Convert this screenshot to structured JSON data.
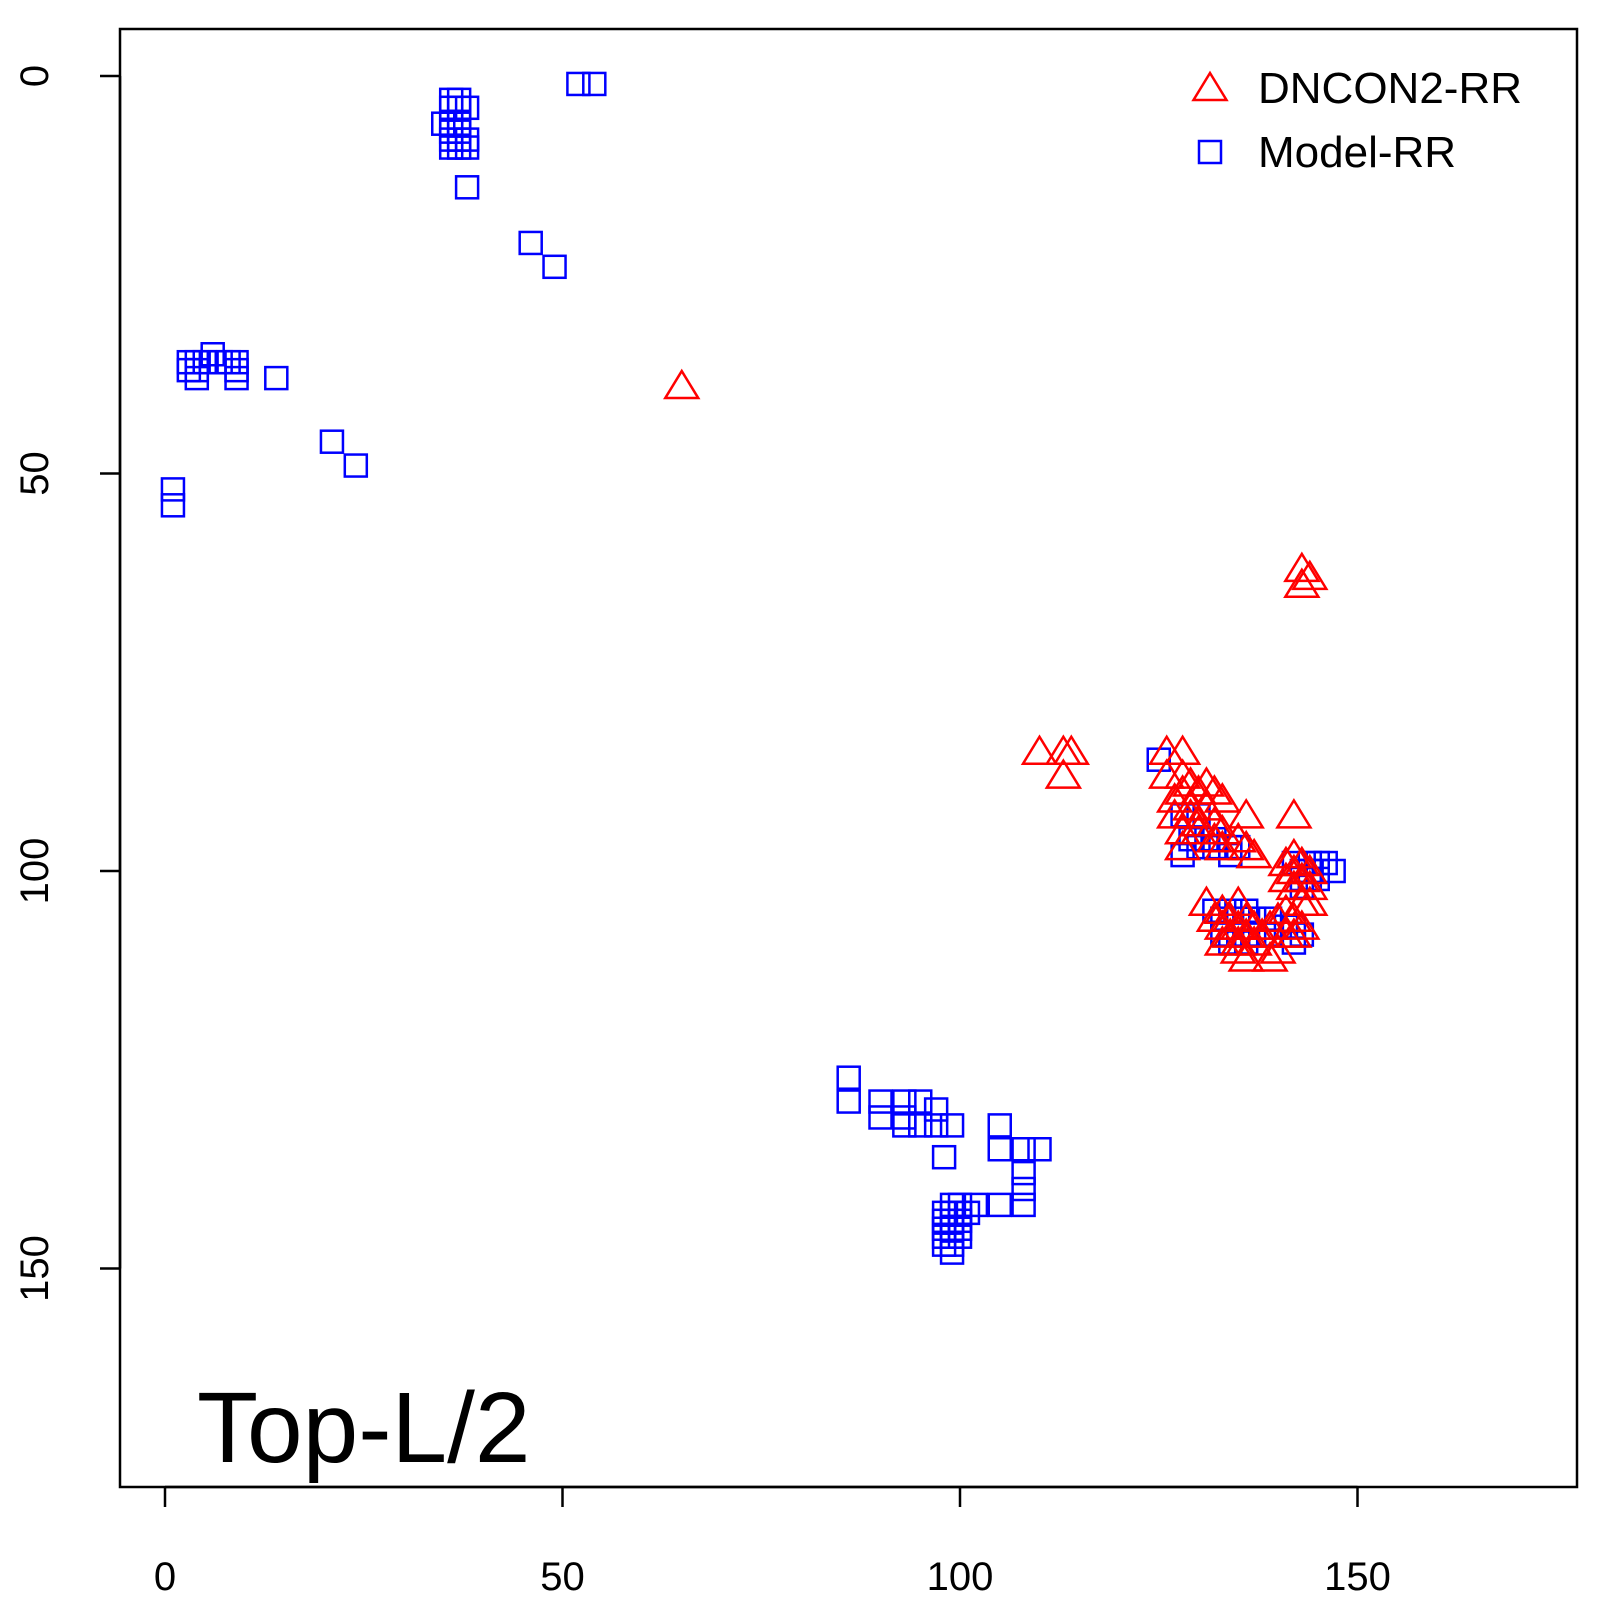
{
  "chart_data": {
    "type": "scatter",
    "title": "",
    "xlabel": "",
    "ylabel": "",
    "xlim": [
      -6,
      178
    ],
    "ylim": [
      -6,
      178
    ],
    "y_reversed": true,
    "grid": false,
    "x_ticks": [
      0,
      50,
      100,
      150
    ],
    "y_ticks": [
      0,
      50,
      100,
      150
    ],
    "annotation": "Top-L/2",
    "legend": {
      "position": "top-right",
      "entries": [
        "DNCON2-RR",
        "Model-RR"
      ]
    },
    "series": [
      {
        "name": "DNCON2-RR",
        "marker": "triangle",
        "color": "#ff0000",
        "points": [
          [
            65,
            39
          ],
          [
            110,
            85
          ],
          [
            113,
            85
          ],
          [
            114,
            85
          ],
          [
            113,
            88
          ],
          [
            143,
            62
          ],
          [
            144,
            63
          ],
          [
            143,
            64
          ],
          [
            126,
            85
          ],
          [
            128,
            85
          ],
          [
            126,
            88
          ],
          [
            128,
            88
          ],
          [
            129,
            89
          ],
          [
            131,
            89
          ],
          [
            128,
            90
          ],
          [
            130,
            90
          ],
          [
            132,
            90
          ],
          [
            127,
            91
          ],
          [
            129,
            92
          ],
          [
            131,
            92
          ],
          [
            133,
            91
          ],
          [
            127,
            93
          ],
          [
            129,
            93
          ],
          [
            130,
            94
          ],
          [
            132,
            94
          ],
          [
            136,
            93
          ],
          [
            128,
            95
          ],
          [
            130,
            95
          ],
          [
            133,
            95
          ],
          [
            128,
            97
          ],
          [
            132,
            96
          ],
          [
            135,
            96
          ],
          [
            133,
            97
          ],
          [
            136,
            97
          ],
          [
            137,
            98
          ],
          [
            142,
            93
          ],
          [
            142,
            98
          ],
          [
            141,
            99
          ],
          [
            143,
            99
          ],
          [
            142,
            100
          ],
          [
            144,
            100
          ],
          [
            141,
            101
          ],
          [
            143,
            101
          ],
          [
            142,
            102
          ],
          [
            144,
            102
          ],
          [
            143,
            104
          ],
          [
            144,
            104
          ],
          [
            141,
            105
          ],
          [
            142,
            106
          ],
          [
            143,
            107
          ],
          [
            131,
            104
          ],
          [
            133,
            105
          ],
          [
            135,
            104
          ],
          [
            132,
            106
          ],
          [
            134,
            106
          ],
          [
            136,
            106
          ],
          [
            133,
            107
          ],
          [
            135,
            107
          ],
          [
            137,
            107
          ],
          [
            134,
            108
          ],
          [
            136,
            108
          ],
          [
            138,
            108
          ],
          [
            133,
            109
          ],
          [
            135,
            109
          ],
          [
            137,
            109
          ],
          [
            135,
            110
          ],
          [
            139,
            107
          ],
          [
            140,
            106
          ],
          [
            142,
            108
          ],
          [
            136,
            111
          ],
          [
            139,
            111
          ],
          [
            140,
            110
          ],
          [
            141,
            108
          ]
        ]
      },
      {
        "name": "Model-RR",
        "marker": "square",
        "color": "#0000ff",
        "points": [
          [
            52,
            1
          ],
          [
            54,
            1
          ],
          [
            36,
            3
          ],
          [
            37,
            3
          ],
          [
            36,
            4
          ],
          [
            37,
            4
          ],
          [
            38,
            4
          ],
          [
            35,
            6
          ],
          [
            36,
            6
          ],
          [
            37,
            6
          ],
          [
            36,
            7
          ],
          [
            37,
            7
          ],
          [
            36,
            8
          ],
          [
            37,
            8
          ],
          [
            38,
            8
          ],
          [
            36,
            9
          ],
          [
            37,
            9
          ],
          [
            38,
            9
          ],
          [
            38,
            14
          ],
          [
            46,
            21
          ],
          [
            49,
            24
          ],
          [
            6,
            35
          ],
          [
            3,
            36
          ],
          [
            4,
            36
          ],
          [
            5,
            36
          ],
          [
            7,
            36
          ],
          [
            8,
            36
          ],
          [
            9,
            36
          ],
          [
            3,
            37
          ],
          [
            4,
            37
          ],
          [
            9,
            37
          ],
          [
            4,
            38
          ],
          [
            9,
            38
          ],
          [
            14,
            38
          ],
          [
            21,
            46
          ],
          [
            24,
            49
          ],
          [
            1,
            52
          ],
          [
            1,
            54
          ],
          [
            125,
            86
          ],
          [
            128,
            93
          ],
          [
            130,
            93
          ],
          [
            129,
            96
          ],
          [
            131,
            96
          ],
          [
            132,
            96
          ],
          [
            130,
            97
          ],
          [
            132,
            97
          ],
          [
            134,
            97
          ],
          [
            135,
            97
          ],
          [
            134,
            98
          ],
          [
            128,
            98
          ],
          [
            142,
            99
          ],
          [
            144,
            99
          ],
          [
            145,
            99
          ],
          [
            146,
            99
          ],
          [
            143,
            100
          ],
          [
            144,
            100
          ],
          [
            145,
            100
          ],
          [
            147,
            100
          ],
          [
            143,
            101
          ],
          [
            144,
            101
          ],
          [
            145,
            101
          ],
          [
            143,
            102
          ],
          [
            132,
            105
          ],
          [
            134,
            105
          ],
          [
            136,
            105
          ],
          [
            133,
            106
          ],
          [
            135,
            106
          ],
          [
            137,
            106
          ],
          [
            139,
            106
          ],
          [
            133,
            108
          ],
          [
            135,
            108
          ],
          [
            137,
            108
          ],
          [
            139,
            108
          ],
          [
            134,
            109
          ],
          [
            136,
            109
          ],
          [
            141,
            107
          ],
          [
            142,
            107
          ],
          [
            142,
            109
          ],
          [
            143,
            108
          ],
          [
            86,
            126
          ],
          [
            86,
            129
          ],
          [
            90,
            129
          ],
          [
            93,
            129
          ],
          [
            95,
            129
          ],
          [
            90,
            131
          ],
          [
            93,
            131
          ],
          [
            97,
            130
          ],
          [
            93,
            132
          ],
          [
            95,
            132
          ],
          [
            97,
            132
          ],
          [
            99,
            132
          ],
          [
            98,
            136
          ],
          [
            105,
            132
          ],
          [
            105,
            135
          ],
          [
            108,
            135
          ],
          [
            110,
            135
          ],
          [
            108,
            138
          ],
          [
            108,
            140
          ],
          [
            99,
            142
          ],
          [
            100,
            142
          ],
          [
            102,
            142
          ],
          [
            105,
            142
          ],
          [
            108,
            142
          ],
          [
            98,
            143
          ],
          [
            99,
            143
          ],
          [
            100,
            143
          ],
          [
            101,
            143
          ],
          [
            98,
            144
          ],
          [
            99,
            144
          ],
          [
            100,
            144
          ],
          [
            98,
            145
          ],
          [
            99,
            145
          ],
          [
            100,
            145
          ],
          [
            98,
            146
          ],
          [
            99,
            146
          ],
          [
            100,
            146
          ],
          [
            98,
            147
          ],
          [
            99,
            147
          ],
          [
            99,
            148
          ]
        ]
      }
    ]
  }
}
